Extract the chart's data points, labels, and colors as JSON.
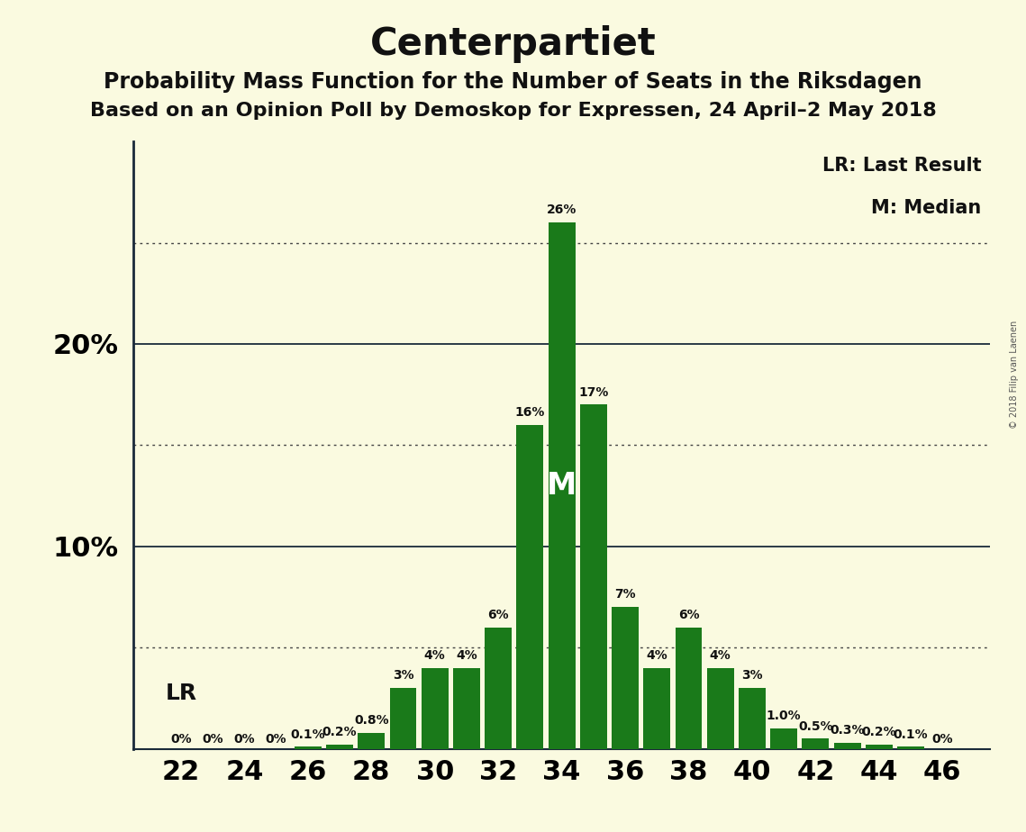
{
  "title": "Centerpartiet",
  "subtitle1": "Probability Mass Function for the Number of Seats in the Riksdagen",
  "subtitle2": "Based on an Opinion Poll by Demoskop for Expressen, 24 April–2 May 2018",
  "copyright": "© 2018 Filip van Laenen",
  "seats": [
    22,
    23,
    24,
    25,
    26,
    27,
    28,
    29,
    30,
    31,
    32,
    33,
    34,
    35,
    36,
    37,
    38,
    39,
    40,
    41,
    42,
    43,
    44,
    45,
    46
  ],
  "values": [
    0,
    0,
    0,
    0,
    0.1,
    0.2,
    0.8,
    3,
    4,
    4,
    6,
    16,
    26,
    17,
    7,
    4,
    6,
    4,
    3,
    1.0,
    0.5,
    0.3,
    0.2,
    0.1,
    0
  ],
  "labels": [
    "0%",
    "0%",
    "0%",
    "0%",
    "0.1%",
    "0.2%",
    "0.8%",
    "3%",
    "4%",
    "4%",
    "6%",
    "16%",
    "26%",
    "17%",
    "7%",
    "4%",
    "6%",
    "4%",
    "3%",
    "1.0%",
    "0.5%",
    "0.3%",
    "0.2%",
    "0.1%",
    "0%"
  ],
  "bar_color": "#1a7a1a",
  "background_color": "#fafae0",
  "median_seat": 34,
  "lr_seat": 22,
  "solid_lines": [
    10,
    20
  ],
  "dotted_lines": [
    5,
    15,
    25
  ],
  "legend_lr": "LR: Last Result",
  "legend_m": "M: Median",
  "title_fontsize": 30,
  "subtitle_fontsize": 17,
  "axis_fontsize": 22,
  "label_fontsize": 10,
  "lr_fontsize": 18,
  "legend_fontsize": 15,
  "median_fontsize": 24,
  "copyright_fontsize": 7
}
